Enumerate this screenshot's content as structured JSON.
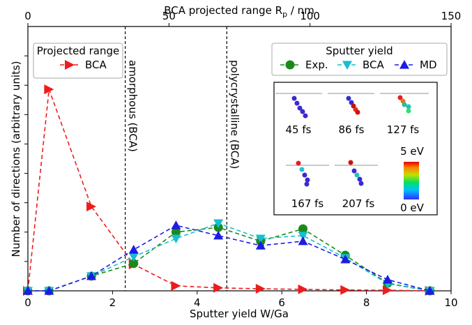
{
  "chart_data": {
    "type": "line",
    "xlabel": "Sputter yield W/Ga",
    "ylabel": "Number of directions (arbitrary units)",
    "x2label": {
      "main": "BCA projected range R",
      "sub": "p",
      "unit": " / nm"
    },
    "x": [
      0,
      0.5,
      1.5,
      2.5,
      3.5,
      4.5,
      5.5,
      6.5,
      7.5,
      8.5,
      9.5
    ],
    "xlim": [
      0,
      10
    ],
    "xticks": [
      0,
      2,
      4,
      6,
      8,
      10
    ],
    "x2lim": [
      0,
      150
    ],
    "x2ticks": [
      0,
      50,
      100,
      150
    ],
    "ylim": [
      0,
      9
    ],
    "yticks": [
      0,
      1,
      2,
      3,
      4,
      5,
      6,
      7,
      8
    ],
    "legends": [
      {
        "title": "Projected range",
        "series": [
          {
            "name": "BCA",
            "color": "#ee1c1c",
            "marker": "triangle-right",
            "values": [
              0,
              6.86,
              2.87,
              0.9,
              0.17,
              0.1,
              0.07,
              0.05,
              0.03,
              0.02,
              0
            ]
          }
        ]
      },
      {
        "title": "Sputter yield",
        "series": [
          {
            "name": "Exp.",
            "color": "#1a8a1a",
            "marker": "circle",
            "values": [
              0,
              0,
              0.5,
              0.93,
              2.0,
              2.16,
              1.69,
              2.11,
              1.21,
              0.26,
              0
            ]
          },
          {
            "name": "BCA",
            "color": "#17becf",
            "marker": "triangle-down",
            "values": [
              0,
              0,
              0.5,
              1.16,
              1.78,
              2.3,
              1.78,
              1.88,
              1.12,
              0.24,
              0
            ]
          },
          {
            "name": "MD",
            "color": "#1c1ce6",
            "marker": "triangle-up",
            "values": [
              0,
              0,
              0.5,
              1.4,
              2.23,
              1.88,
              1.54,
              1.69,
              1.07,
              0.38,
              0
            ]
          }
        ]
      }
    ],
    "vlines": [
      {
        "x": 2.3,
        "label": "amorphous (BCA)"
      },
      {
        "x": 4.7,
        "label": "polycrystalline (BCA)"
      }
    ],
    "inset": {
      "times": [
        "45 fs",
        "86 fs",
        "127 fs",
        "167 fs",
        "207 fs"
      ],
      "colorbar": [
        "5 eV",
        "0 eV"
      ]
    }
  }
}
